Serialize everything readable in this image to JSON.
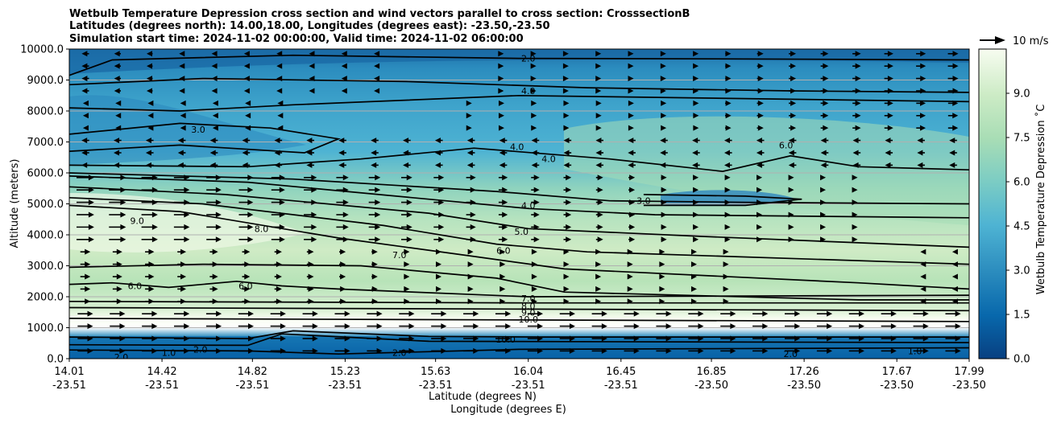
{
  "chart_data": {
    "type": "contour",
    "title_lines": [
      "Wetbulb Temperature Depression cross section and wind vectors parallel to cross section: CrosssectionB",
      "Latitudes (degrees north): 14.00,18.00, Longitudes (degrees east): -23.50,-23.50",
      "Simulation start time: 2024-11-02 00:00:00, Valid time: 2024-11-02 06:00:00"
    ],
    "xlabel_lines": [
      "Latitude (degrees N)",
      "Longitude (degrees E)"
    ],
    "ylabel": "Altitude (meters)",
    "colorbar_label": "Wetbulb Temperature Depression ˚C",
    "ylim": [
      0,
      10000
    ],
    "y_ticks": [
      "0.0",
      "1000.0",
      "2000.0",
      "3000.0",
      "4000.0",
      "5000.0",
      "6000.0",
      "7000.0",
      "8000.0",
      "9000.0",
      "10000.0"
    ],
    "x_ticks": [
      {
        "lat": "14.01",
        "lon": "-23.51"
      },
      {
        "lat": "14.42",
        "lon": "-23.51"
      },
      {
        "lat": "14.82",
        "lon": "-23.51"
      },
      {
        "lat": "15.23",
        "lon": "-23.51"
      },
      {
        "lat": "15.63",
        "lon": "-23.51"
      },
      {
        "lat": "16.04",
        "lon": "-23.51"
      },
      {
        "lat": "16.45",
        "lon": "-23.51"
      },
      {
        "lat": "16.85",
        "lon": "-23.50"
      },
      {
        "lat": "17.26",
        "lon": "-23.50"
      },
      {
        "lat": "17.67",
        "lon": "-23.50"
      },
      {
        "lat": "17.99",
        "lon": "-23.50"
      }
    ],
    "colorbar_range": [
      0,
      10.5
    ],
    "colorbar_ticks": [
      "0.0",
      "1.5",
      "3.0",
      "4.5",
      "6.0",
      "7.5",
      "9.0"
    ],
    "quiver_key": "10 m/s",
    "grid": "horizontal",
    "contour_labels": [
      {
        "text": "2.0",
        "x": 16.04,
        "y": 9700
      },
      {
        "text": "4.0",
        "x": 16.04,
        "y": 8650
      },
      {
        "text": "3.0",
        "x": 14.58,
        "y": 7400
      },
      {
        "text": "4.0",
        "x": 15.99,
        "y": 6850
      },
      {
        "text": "4.0",
        "x": 16.13,
        "y": 6450
      },
      {
        "text": "6.0",
        "x": 17.18,
        "y": 6900
      },
      {
        "text": "4.0",
        "x": 16.04,
        "y": 4950
      },
      {
        "text": "3.0",
        "x": 16.55,
        "y": 5100
      },
      {
        "text": "9.0",
        "x": 14.31,
        "y": 4450
      },
      {
        "text": "8.0",
        "x": 14.86,
        "y": 4200
      },
      {
        "text": "5.0",
        "x": 16.01,
        "y": 4100
      },
      {
        "text": "6.0",
        "x": 15.93,
        "y": 3500
      },
      {
        "text": "7.0",
        "x": 15.47,
        "y": 3350
      },
      {
        "text": "6.0",
        "x": 14.3,
        "y": 2350
      },
      {
        "text": "6.0",
        "x": 14.79,
        "y": 2350
      },
      {
        "text": "7.0",
        "x": 16.04,
        "y": 1950
      },
      {
        "text": "8.0",
        "x": 16.04,
        "y": 1700
      },
      {
        "text": "9.0",
        "x": 16.04,
        "y": 1500
      },
      {
        "text": "10.0",
        "x": 16.04,
        "y": 1270
      },
      {
        "text": "10.0",
        "x": 15.94,
        "y": 620
      },
      {
        "text": "2.0",
        "x": 14.24,
        "y": 50
      },
      {
        "text": "1.0",
        "x": 14.45,
        "y": 200
      },
      {
        "text": "2.0",
        "x": 14.59,
        "y": 300
      },
      {
        "text": "2.0",
        "x": 15.47,
        "y": 200
      },
      {
        "text": "2.0",
        "x": 17.2,
        "y": 150
      },
      {
        "text": "1.0",
        "x": 17.75,
        "y": 250
      }
    ]
  }
}
